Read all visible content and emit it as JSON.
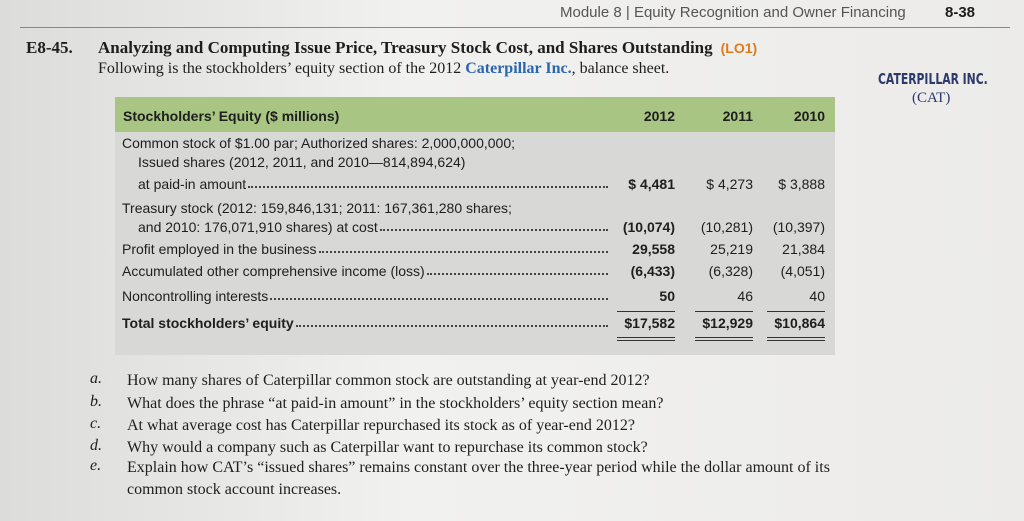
{
  "header": {
    "module": "Module 8 | Equity Recognition and Owner Financing",
    "page": "8-38"
  },
  "exercise": {
    "number": "E8-45.",
    "title": "Analyzing and Computing Issue Price, Treasury Stock Cost, and Shares Outstanding",
    "lo": "(LO1)",
    "intro_before": "Following is the stockholders’ equity section of the 2012",
    "company": "Caterpillar Inc.",
    "intro_after": ", balance sheet."
  },
  "logo": {
    "name": "CATERPILLAR INC.",
    "ticker": "(CAT)"
  },
  "table": {
    "header": [
      "Stockholders’ Equity ($ millions)",
      "2012",
      "2011",
      "2010"
    ],
    "rows": [
      {
        "lines": [
          "Common stock of $1.00 par; Authorized shares: 2,000,000,000;",
          "Issued shares (2012, 2011, and 2010—814,894,624)",
          "at paid-in amount"
        ],
        "values": [
          "$ 4,481",
          "$ 4,273",
          "$ 3,888"
        ]
      },
      {
        "lines": [
          "Treasury stock (2012: 159,846,131; 2011: 167,361,280 shares;",
          "and 2010: 176,071,910 shares) at cost"
        ],
        "values": [
          "(10,074)",
          "(10,281)",
          "(10,397)"
        ]
      },
      {
        "lines": [
          "Profit employed in the business"
        ],
        "values": [
          "29,558",
          "25,219",
          "21,384"
        ]
      },
      {
        "lines": [
          "Accumulated other comprehensive income (loss)"
        ],
        "values": [
          "(6,433)",
          "(6,328)",
          "(4,051)"
        ]
      },
      {
        "lines": [
          "Noncontrolling interests"
        ],
        "values": [
          "50",
          "46",
          "40"
        ]
      },
      {
        "lines": [
          "Total stockholders’ equity"
        ],
        "values": [
          "$17,582",
          "$12,929",
          "$10,864"
        ]
      }
    ]
  },
  "questions": [
    {
      "letter": "a.",
      "text": "How many shares of Caterpillar common stock are outstanding at year-end 2012?"
    },
    {
      "letter": "b.",
      "text": "What does the phrase “at paid-in amount” in the stockholders’ equity section mean?"
    },
    {
      "letter": "c.",
      "text": "At what average cost has Caterpillar repurchased its stock as of year-end 2012?"
    },
    {
      "letter": "d.",
      "text": "Why would a company such as Caterpillar want to repurchase its common stock?"
    },
    {
      "letter": "e.",
      "text": "Explain how CAT’s “issued shares” remains constant over the three-year period while the dollar amount of its common stock account increases."
    }
  ]
}
